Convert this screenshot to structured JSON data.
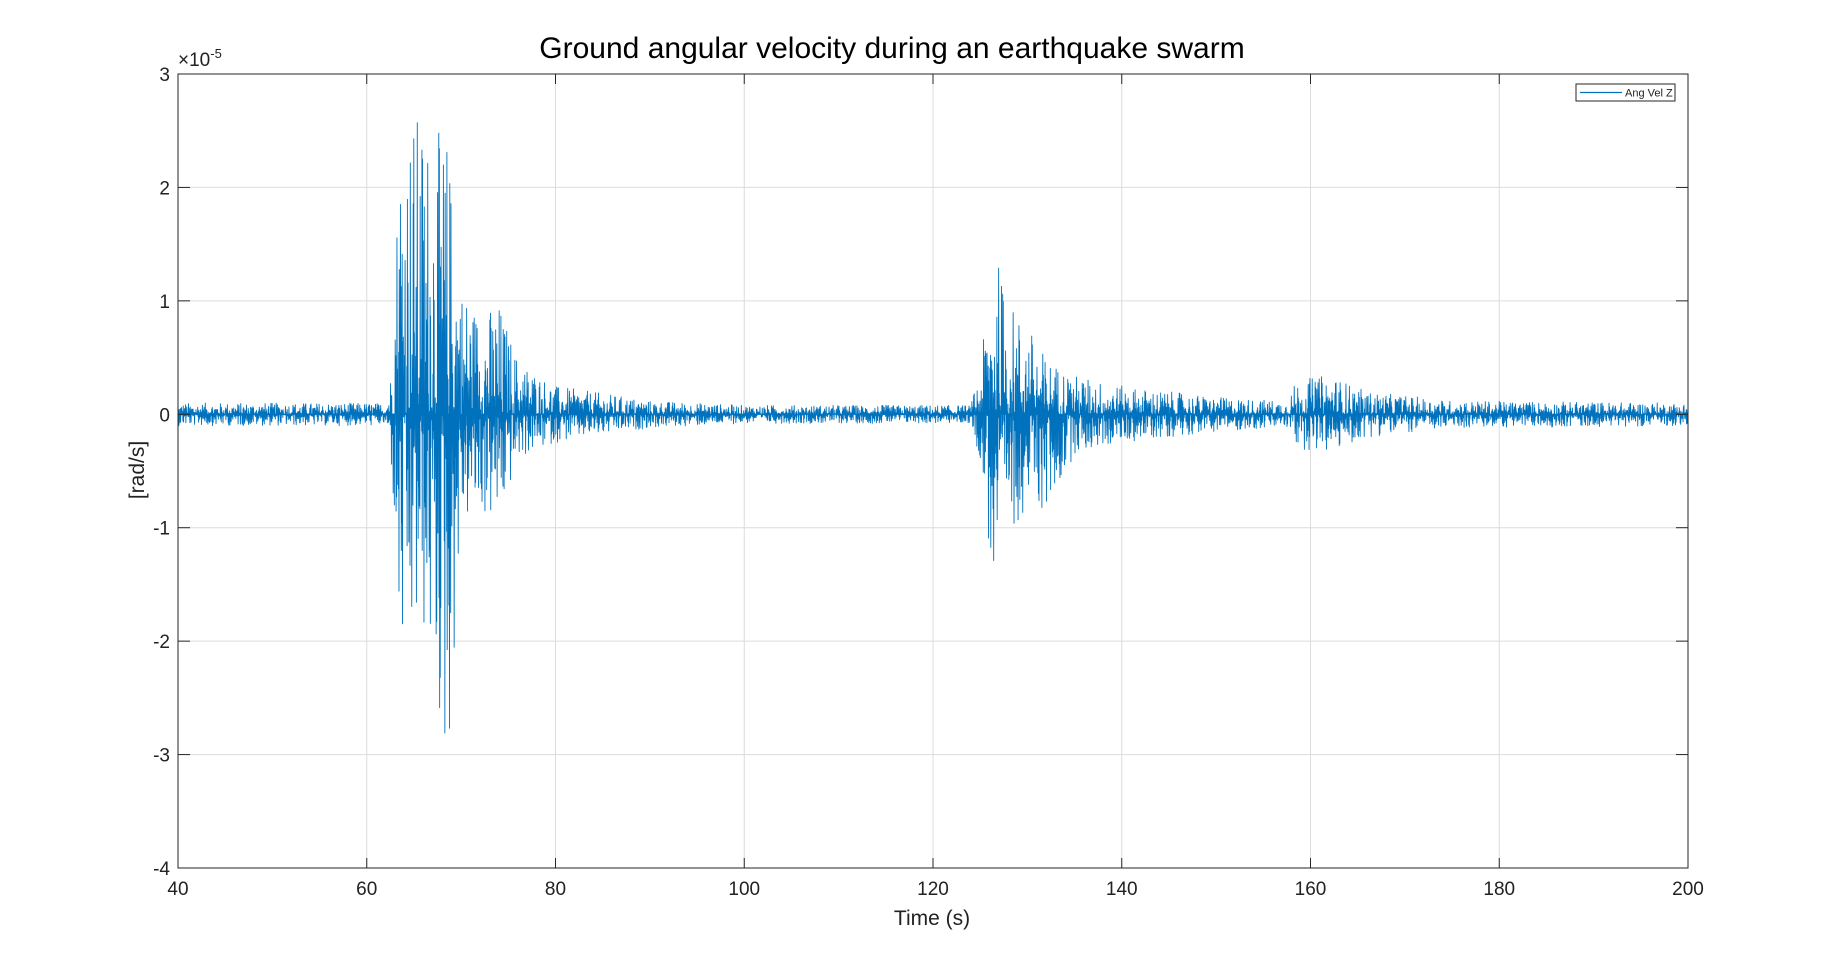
{
  "chart_data": {
    "type": "line",
    "title": "Ground angular velocity during an earthquake swarm",
    "xlabel": "Time (s)",
    "ylabel": "[rad/s]",
    "y_multiplier_label": "×10",
    "y_multiplier_exponent": "-5",
    "xlim": [
      40,
      200
    ],
    "ylim": [
      -4,
      3
    ],
    "xticks": [
      40,
      60,
      80,
      100,
      120,
      140,
      160,
      180,
      200
    ],
    "yticks": [
      -4,
      -3,
      -2,
      -1,
      0,
      1,
      2,
      3
    ],
    "xtick_labels": [
      "40",
      "60",
      "80",
      "100",
      "120",
      "140",
      "160",
      "180",
      "200"
    ],
    "ytick_labels": [
      "-4",
      "-3",
      "-2",
      "-1",
      "0",
      "1",
      "2",
      "3"
    ],
    "grid": true,
    "legend_position": "top-right",
    "series": [
      {
        "name": "Ang Vel Z",
        "color": "#0072BD",
        "envelope": [
          {
            "x": 40,
            "max": 0.1,
            "min": -0.1
          },
          {
            "x": 62,
            "max": 0.1,
            "min": -0.1
          },
          {
            "x": 62.5,
            "max": 0.3,
            "min": -0.3
          },
          {
            "x": 63,
            "max": 1.5,
            "min": -1.2
          },
          {
            "x": 63.5,
            "max": 2.7,
            "min": -2.5
          },
          {
            "x": 64.5,
            "max": 2.7,
            "min": -2.2
          },
          {
            "x": 66,
            "max": 2.7,
            "min": -2.0
          },
          {
            "x": 67,
            "max": 2.5,
            "min": -2.3
          },
          {
            "x": 68.5,
            "max": 2.5,
            "min": -3.4
          },
          {
            "x": 70,
            "max": 1.2,
            "min": -1.0
          },
          {
            "x": 72,
            "max": 0.9,
            "min": -0.9
          },
          {
            "x": 74,
            "max": 1.0,
            "min": -1.0
          },
          {
            "x": 76,
            "max": 0.5,
            "min": -0.4
          },
          {
            "x": 80,
            "max": 0.25,
            "min": -0.25
          },
          {
            "x": 90,
            "max": 0.12,
            "min": -0.12
          },
          {
            "x": 100,
            "max": 0.08,
            "min": -0.08
          },
          {
            "x": 124,
            "max": 0.08,
            "min": -0.08
          },
          {
            "x": 125,
            "max": 0.4,
            "min": -0.4
          },
          {
            "x": 126.5,
            "max": 1.5,
            "min": -1.7
          },
          {
            "x": 128,
            "max": 1.0,
            "min": -1.1
          },
          {
            "x": 130,
            "max": 0.8,
            "min": -0.8
          },
          {
            "x": 132,
            "max": 0.5,
            "min": -0.9
          },
          {
            "x": 135,
            "max": 0.35,
            "min": -0.35
          },
          {
            "x": 140,
            "max": 0.25,
            "min": -0.25
          },
          {
            "x": 150,
            "max": 0.15,
            "min": -0.15
          },
          {
            "x": 157.5,
            "max": 0.12,
            "min": -0.12
          },
          {
            "x": 158.5,
            "max": 0.3,
            "min": -0.3
          },
          {
            "x": 162,
            "max": 0.35,
            "min": -0.35
          },
          {
            "x": 166,
            "max": 0.2,
            "min": -0.2
          },
          {
            "x": 175,
            "max": 0.12,
            "min": -0.12
          },
          {
            "x": 200,
            "max": 0.1,
            "min": -0.1
          }
        ]
      }
    ]
  }
}
